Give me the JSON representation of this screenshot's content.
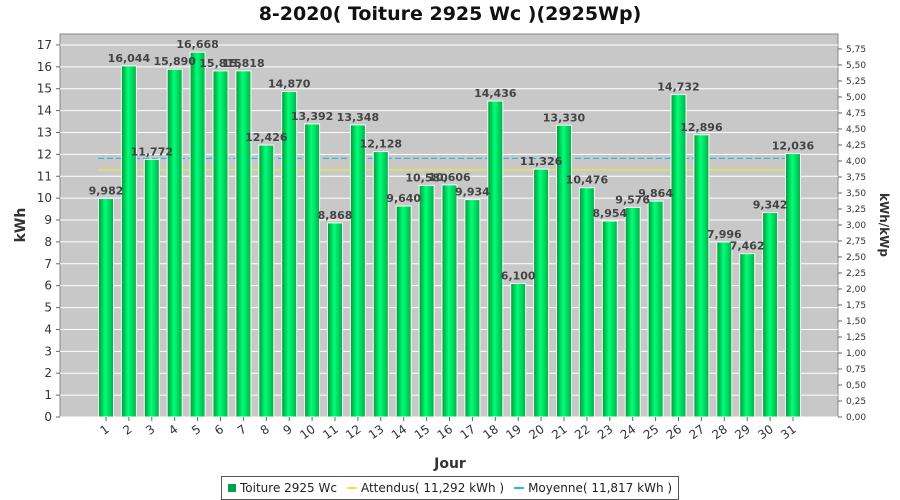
{
  "chart_data": {
    "type": "bar",
    "title": "8-2020( Toiture 2925 Wc )(2925Wp)",
    "xlabel": "Jour",
    "ylabel": "kWh",
    "y2label": "kWh/kWp",
    "ylim": [
      0,
      17.5
    ],
    "yticks": [
      "0",
      "1",
      "2",
      "3",
      "4",
      "5",
      "6",
      "7",
      "8",
      "9",
      "10",
      "11",
      "12",
      "13",
      "14",
      "15",
      "16",
      "17"
    ],
    "y2ticks": [
      "0,00",
      "0,25",
      "0,50",
      "0,75",
      "1,00",
      "1,25",
      "1,50",
      "1,75",
      "2,00",
      "2,25",
      "2,50",
      "2,75",
      "3,00",
      "3,25",
      "3,50",
      "3,75",
      "4,00",
      "4,25",
      "4,50",
      "4,75",
      "5,00",
      "5,25",
      "5,50",
      "5,75"
    ],
    "y2_per_kwh": 0.3419,
    "categories": [
      "1",
      "2",
      "3",
      "4",
      "5",
      "6",
      "7",
      "8",
      "9",
      "10",
      "11",
      "12",
      "13",
      "14",
      "15",
      "16",
      "17",
      "18",
      "19",
      "20",
      "21",
      "22",
      "23",
      "24",
      "25",
      "26",
      "27",
      "28",
      "29",
      "30",
      "31"
    ],
    "series": [
      {
        "name": "Toiture 2925 Wc",
        "color": "#00e060",
        "values": [
          9.982,
          16.044,
          11.772,
          15.89,
          16.668,
          15.815,
          15.818,
          12.426,
          14.87,
          13.392,
          8.868,
          13.348,
          12.128,
          9.64,
          10.58,
          10.606,
          9.934,
          14.436,
          6.1,
          11.326,
          13.33,
          10.476,
          8.954,
          9.576,
          9.864,
          14.732,
          12.896,
          7.996,
          7.462,
          9.342,
          12.036
        ],
        "labels": [
          "9,982",
          "16,044",
          "11,772",
          "15,890",
          "16,668",
          "15,815",
          "15,818",
          "12,426",
          "14,870",
          "13,392",
          "8,868",
          "13,348",
          "12,128",
          "9,640",
          "10,580",
          "10,606",
          "9,934",
          "14,436",
          "6,100",
          "11,326",
          "13,330",
          "10,476",
          "8,954",
          "9,576",
          "9,864",
          "14,732",
          "12,896",
          "7,996",
          "7,462",
          "9,342",
          "12,036"
        ]
      }
    ],
    "reference_lines": [
      {
        "name": "Attendus",
        "value": 11.292,
        "color": "#e8e840",
        "style": "solid"
      },
      {
        "name": "Moyenne",
        "value": 11.817,
        "color": "#30b8d8",
        "style": "dashed"
      }
    ],
    "legend": {
      "position": "bottom",
      "items": [
        "Toiture 2925 Wc",
        "Attendus( 11,292 kWh )",
        "Moyenne( 11,817 kWh )"
      ]
    },
    "grid": true,
    "plot_background": "#c8c8c8"
  }
}
